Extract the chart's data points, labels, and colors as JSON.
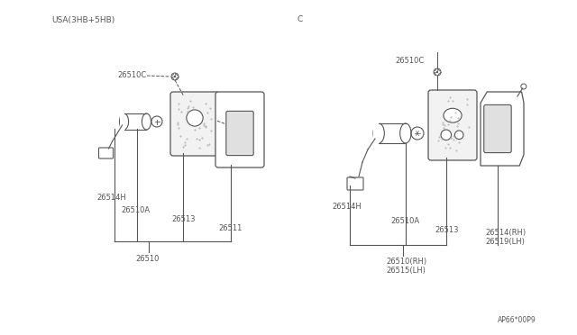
{
  "bg_color": "#ffffff",
  "line_color": "#555555",
  "text_color": "#555555",
  "fig_width": 6.4,
  "fig_height": 3.72,
  "dpi": 100,
  "left_label": "USA(3HB+5HB)",
  "right_label": "C",
  "footnote": "AP66*00P9",
  "left": {
    "label_26510C": "26510C",
    "label_26514H": "26514H",
    "label_26510A": "26510A",
    "label_26513": "26513",
    "label_26511": "26511",
    "label_26510": "26510"
  },
  "right": {
    "label_26510C": "26510C",
    "label_26514H": "26514H",
    "label_26510A": "26510A",
    "label_26513": "26513",
    "label_26514RH": "26514(RH)",
    "label_26519LH": "26519(LH)",
    "label_26510RH": "26510(RH)",
    "label_26515LH": "26515(LH)"
  }
}
